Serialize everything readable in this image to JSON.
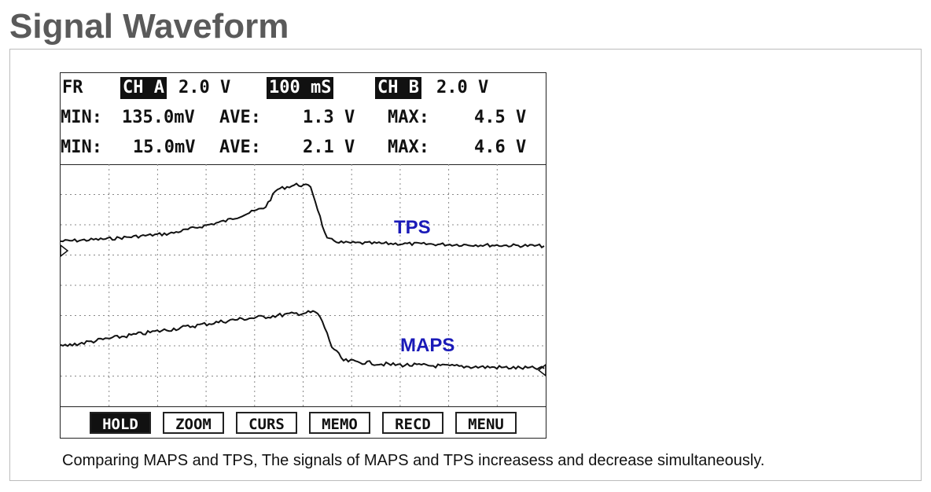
{
  "title": "Signal Waveform",
  "scope": {
    "header": {
      "mode": "FR",
      "ch_a_label": "CH A",
      "ch_a_scale": "2.0 V",
      "timebase": "100 mS",
      "ch_b_label": "CH B",
      "ch_b_scale": "2.0 V",
      "row1": {
        "min_label": "MIN:",
        "min_value": "135.0mV",
        "ave_label": "AVE:",
        "ave_value": "1.3 V",
        "max_label": "MAX:",
        "max_value": "4.5 V"
      },
      "row2": {
        "min_label": "MIN:",
        "min_value": "15.0mV",
        "ave_label": "AVE:",
        "ave_value": "2.1 V",
        "max_label": "MAX:",
        "max_value": "4.6 V"
      }
    },
    "traces": {
      "tps_label": "TPS",
      "maps_label": "MAPS",
      "label_color": "#1a1ab8",
      "trace_color": "#111111"
    },
    "softkeys": [
      {
        "label": "HOLD",
        "active": true
      },
      {
        "label": "ZOOM",
        "active": false
      },
      {
        "label": "CURS",
        "active": false
      },
      {
        "label": "MEMO",
        "active": false
      },
      {
        "label": "RECD",
        "active": false
      },
      {
        "label": "MENU",
        "active": false
      }
    ]
  },
  "caption": "Comparing MAPS and TPS, The signals of MAPS and TPS increasess and decrease simultaneously."
}
